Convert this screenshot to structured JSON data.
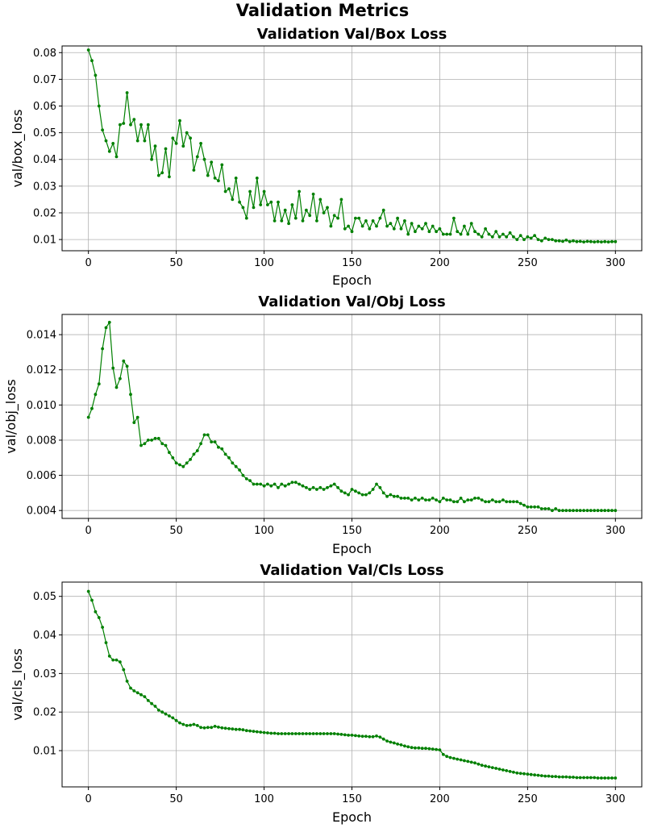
{
  "figure": {
    "suptitle": "Validation Metrics"
  },
  "chart_data": [
    {
      "type": "line",
      "title": "Validation Val/Box Loss",
      "xlabel": "Epoch",
      "ylabel": "val/box_loss",
      "xlim": [
        -15,
        315
      ],
      "ylim": [
        0.0058,
        0.0825
      ],
      "xticks": [
        0,
        50,
        100,
        150,
        200,
        250,
        300
      ],
      "xtick_labels": [
        "0",
        "50",
        "100",
        "150",
        "200",
        "250",
        "300"
      ],
      "yticks": [
        0.01,
        0.02,
        0.03,
        0.04,
        0.05,
        0.06,
        0.07,
        0.08
      ],
      "ytick_labels": [
        "0.01",
        "0.02",
        "0.03",
        "0.04",
        "0.05",
        "0.06",
        "0.07",
        "0.08"
      ],
      "grid": true,
      "marker": "o",
      "series": [
        {
          "color": "#008000",
          "x": [
            0,
            2,
            4,
            6,
            8,
            10,
            12,
            14,
            16,
            18,
            20,
            22,
            24,
            26,
            28,
            30,
            32,
            34,
            36,
            38,
            40,
            42,
            44,
            46,
            48,
            50,
            52,
            54,
            56,
            58,
            60,
            62,
            64,
            66,
            68,
            70,
            72,
            74,
            76,
            78,
            80,
            82,
            84,
            86,
            88,
            90,
            92,
            94,
            96,
            98,
            100,
            102,
            104,
            106,
            108,
            110,
            112,
            114,
            116,
            118,
            120,
            122,
            124,
            126,
            128,
            130,
            132,
            134,
            136,
            138,
            140,
            142,
            144,
            146,
            148,
            150,
            152,
            154,
            156,
            158,
            160,
            162,
            164,
            166,
            168,
            170,
            172,
            174,
            176,
            178,
            180,
            182,
            184,
            186,
            188,
            190,
            192,
            194,
            196,
            198,
            200,
            202,
            204,
            206,
            208,
            210,
            212,
            214,
            216,
            218,
            220,
            222,
            224,
            226,
            228,
            230,
            232,
            234,
            236,
            238,
            240,
            242,
            244,
            246,
            248,
            250,
            252,
            254,
            256,
            258,
            260,
            262,
            264,
            266,
            268,
            270,
            272,
            274,
            276,
            278,
            280,
            282,
            284,
            286,
            288,
            290,
            292,
            294,
            296,
            298,
            300
          ],
          "y": [
            0.081,
            0.077,
            0.0715,
            0.06,
            0.051,
            0.047,
            0.043,
            0.046,
            0.041,
            0.053,
            0.0535,
            0.065,
            0.053,
            0.055,
            0.047,
            0.053,
            0.047,
            0.053,
            0.04,
            0.045,
            0.034,
            0.035,
            0.044,
            0.0335,
            0.048,
            0.046,
            0.0545,
            0.045,
            0.05,
            0.048,
            0.036,
            0.041,
            0.046,
            0.04,
            0.034,
            0.039,
            0.033,
            0.032,
            0.038,
            0.028,
            0.029,
            0.025,
            0.033,
            0.024,
            0.022,
            0.018,
            0.028,
            0.022,
            0.033,
            0.023,
            0.028,
            0.023,
            0.024,
            0.017,
            0.024,
            0.017,
            0.021,
            0.016,
            0.023,
            0.018,
            0.028,
            0.017,
            0.021,
            0.019,
            0.027,
            0.017,
            0.025,
            0.02,
            0.022,
            0.015,
            0.019,
            0.018,
            0.025,
            0.014,
            0.015,
            0.013,
            0.018,
            0.018,
            0.015,
            0.017,
            0.014,
            0.017,
            0.015,
            0.018,
            0.021,
            0.015,
            0.016,
            0.014,
            0.018,
            0.014,
            0.017,
            0.012,
            0.016,
            0.013,
            0.015,
            0.014,
            0.016,
            0.013,
            0.015,
            0.013,
            0.014,
            0.012,
            0.012,
            0.012,
            0.018,
            0.013,
            0.012,
            0.015,
            0.012,
            0.016,
            0.013,
            0.012,
            0.011,
            0.014,
            0.012,
            0.011,
            0.013,
            0.011,
            0.012,
            0.011,
            0.0125,
            0.011,
            0.01,
            0.0115,
            0.01,
            0.011,
            0.0105,
            0.0115,
            0.01,
            0.0095,
            0.0105,
            0.01,
            0.01,
            0.0095,
            0.0095,
            0.0093,
            0.0098,
            0.0092,
            0.0095,
            0.0092,
            0.0093,
            0.0091,
            0.0093,
            0.0092,
            0.0091,
            0.0092,
            0.0091,
            0.0092,
            0.0091,
            0.0092,
            0.0092
          ]
        }
      ]
    },
    {
      "type": "line",
      "title": "Validation Val/Obj Loss",
      "xlabel": "Epoch",
      "ylabel": "val/obj_loss",
      "xlim": [
        -15,
        315
      ],
      "ylim": [
        0.00355,
        0.01515
      ],
      "xticks": [
        0,
        50,
        100,
        150,
        200,
        250,
        300
      ],
      "xtick_labels": [
        "0",
        "50",
        "100",
        "150",
        "200",
        "250",
        "300"
      ],
      "yticks": [
        0.004,
        0.006,
        0.008,
        0.01,
        0.012,
        0.014
      ],
      "ytick_labels": [
        "0.004",
        "0.006",
        "0.008",
        "0.010",
        "0.012",
        "0.014"
      ],
      "grid": true,
      "marker": "o",
      "series": [
        {
          "color": "#008000",
          "x": [
            0,
            2,
            4,
            6,
            8,
            10,
            12,
            14,
            16,
            18,
            20,
            22,
            24,
            26,
            28,
            30,
            32,
            34,
            36,
            38,
            40,
            42,
            44,
            46,
            48,
            50,
            52,
            54,
            56,
            58,
            60,
            62,
            64,
            66,
            68,
            70,
            72,
            74,
            76,
            78,
            80,
            82,
            84,
            86,
            88,
            90,
            92,
            94,
            96,
            98,
            100,
            102,
            104,
            106,
            108,
            110,
            112,
            114,
            116,
            118,
            120,
            122,
            124,
            126,
            128,
            130,
            132,
            134,
            136,
            138,
            140,
            142,
            144,
            146,
            148,
            150,
            152,
            154,
            156,
            158,
            160,
            162,
            164,
            166,
            168,
            170,
            172,
            174,
            176,
            178,
            180,
            182,
            184,
            186,
            188,
            190,
            192,
            194,
            196,
            198,
            200,
            202,
            204,
            206,
            208,
            210,
            212,
            214,
            216,
            218,
            220,
            222,
            224,
            226,
            228,
            230,
            232,
            234,
            236,
            238,
            240,
            242,
            244,
            246,
            248,
            250,
            252,
            254,
            256,
            258,
            260,
            262,
            264,
            266,
            268,
            270,
            272,
            274,
            276,
            278,
            280,
            282,
            284,
            286,
            288,
            290,
            292,
            294,
            296,
            298,
            300
          ],
          "y": [
            0.0093,
            0.0098,
            0.0106,
            0.0112,
            0.0132,
            0.0144,
            0.0147,
            0.0121,
            0.011,
            0.0115,
            0.0125,
            0.0122,
            0.0106,
            0.009,
            0.0093,
            0.0077,
            0.0078,
            0.008,
            0.008,
            0.0081,
            0.0081,
            0.0078,
            0.0077,
            0.0073,
            0.007,
            0.0067,
            0.0066,
            0.0065,
            0.0067,
            0.0069,
            0.0072,
            0.0074,
            0.0078,
            0.0083,
            0.0083,
            0.0079,
            0.0079,
            0.0076,
            0.0075,
            0.0072,
            0.007,
            0.0067,
            0.0065,
            0.0063,
            0.006,
            0.0058,
            0.0057,
            0.0055,
            0.0055,
            0.0055,
            0.0054,
            0.0055,
            0.0054,
            0.0055,
            0.0053,
            0.0055,
            0.0054,
            0.0055,
            0.0056,
            0.0056,
            0.0055,
            0.0054,
            0.0053,
            0.0052,
            0.0053,
            0.0052,
            0.0053,
            0.0052,
            0.0053,
            0.0054,
            0.0055,
            0.0053,
            0.0051,
            0.005,
            0.0049,
            0.0052,
            0.0051,
            0.005,
            0.0049,
            0.0049,
            0.005,
            0.0052,
            0.0055,
            0.0053,
            0.005,
            0.0048,
            0.0049,
            0.0048,
            0.0048,
            0.0047,
            0.0047,
            0.0047,
            0.0046,
            0.0047,
            0.0046,
            0.0047,
            0.0046,
            0.0046,
            0.0047,
            0.0046,
            0.0045,
            0.0047,
            0.0046,
            0.0046,
            0.0045,
            0.0045,
            0.0047,
            0.0045,
            0.0046,
            0.0046,
            0.0047,
            0.0047,
            0.0046,
            0.0045,
            0.0045,
            0.0046,
            0.0045,
            0.0045,
            0.0046,
            0.0045,
            0.0045,
            0.0045,
            0.0045,
            0.0044,
            0.0043,
            0.0042,
            0.0042,
            0.0042,
            0.0042,
            0.0041,
            0.0041,
            0.0041,
            0.004,
            0.0041,
            0.004,
            0.004,
            0.004,
            0.004,
            0.004,
            0.004,
            0.004,
            0.004,
            0.004,
            0.004,
            0.004,
            0.004,
            0.004,
            0.004,
            0.004,
            0.004,
            0.004
          ]
        }
      ]
    },
    {
      "type": "line",
      "title": "Validation Val/Cls Loss",
      "xlabel": "Epoch",
      "ylabel": "val/cls_loss",
      "xlim": [
        -15,
        315
      ],
      "ylim": [
        0.0006,
        0.0537
      ],
      "xticks": [
        0,
        50,
        100,
        150,
        200,
        250,
        300
      ],
      "xtick_labels": [
        "0",
        "50",
        "100",
        "150",
        "200",
        "250",
        "300"
      ],
      "yticks": [
        0.01,
        0.02,
        0.03,
        0.04,
        0.05
      ],
      "ytick_labels": [
        "0.01",
        "0.02",
        "0.03",
        "0.04",
        "0.05"
      ],
      "grid": true,
      "marker": "o",
      "series": [
        {
          "color": "#008000",
          "x": [
            0,
            2,
            4,
            6,
            8,
            10,
            12,
            14,
            16,
            18,
            20,
            22,
            24,
            26,
            28,
            30,
            32,
            34,
            36,
            38,
            40,
            42,
            44,
            46,
            48,
            50,
            52,
            54,
            56,
            58,
            60,
            62,
            64,
            66,
            68,
            70,
            72,
            74,
            76,
            78,
            80,
            82,
            84,
            86,
            88,
            90,
            92,
            94,
            96,
            98,
            100,
            102,
            104,
            106,
            108,
            110,
            112,
            114,
            116,
            118,
            120,
            122,
            124,
            126,
            128,
            130,
            132,
            134,
            136,
            138,
            140,
            142,
            144,
            146,
            148,
            150,
            152,
            154,
            156,
            158,
            160,
            162,
            164,
            166,
            168,
            170,
            172,
            174,
            176,
            178,
            180,
            182,
            184,
            186,
            188,
            190,
            192,
            194,
            196,
            198,
            200,
            202,
            204,
            206,
            208,
            210,
            212,
            214,
            216,
            218,
            220,
            222,
            224,
            226,
            228,
            230,
            232,
            234,
            236,
            238,
            240,
            242,
            244,
            246,
            248,
            250,
            252,
            254,
            256,
            258,
            260,
            262,
            264,
            266,
            268,
            270,
            272,
            274,
            276,
            278,
            280,
            282,
            284,
            286,
            288,
            290,
            292,
            294,
            296,
            298,
            300
          ],
          "y": [
            0.0513,
            0.049,
            0.046,
            0.0445,
            0.042,
            0.038,
            0.0345,
            0.0335,
            0.0335,
            0.033,
            0.031,
            0.028,
            0.0262,
            0.0255,
            0.025,
            0.0245,
            0.024,
            0.023,
            0.0222,
            0.0215,
            0.0205,
            0.02,
            0.0195,
            0.019,
            0.0185,
            0.0178,
            0.0172,
            0.0168,
            0.0165,
            0.0166,
            0.0168,
            0.0165,
            0.016,
            0.0159,
            0.016,
            0.016,
            0.0163,
            0.0161,
            0.0159,
            0.0158,
            0.0157,
            0.0156,
            0.0155,
            0.0155,
            0.0154,
            0.0152,
            0.0151,
            0.015,
            0.0149,
            0.0148,
            0.0147,
            0.0146,
            0.0145,
            0.0145,
            0.0144,
            0.0144,
            0.0144,
            0.0144,
            0.0144,
            0.0144,
            0.0144,
            0.0144,
            0.0144,
            0.0144,
            0.0144,
            0.0144,
            0.0144,
            0.0144,
            0.0144,
            0.0144,
            0.0144,
            0.0143,
            0.0142,
            0.0141,
            0.014,
            0.014,
            0.0139,
            0.0138,
            0.0137,
            0.0137,
            0.0136,
            0.0136,
            0.0138,
            0.0135,
            0.013,
            0.0125,
            0.0122,
            0.012,
            0.0117,
            0.0115,
            0.0112,
            0.011,
            0.0108,
            0.0107,
            0.0107,
            0.0106,
            0.0106,
            0.0105,
            0.0104,
            0.0103,
            0.0102,
            0.009,
            0.0085,
            0.0082,
            0.008,
            0.0078,
            0.0076,
            0.0074,
            0.0072,
            0.007,
            0.0068,
            0.0065,
            0.0062,
            0.006,
            0.0058,
            0.0056,
            0.0054,
            0.0052,
            0.005,
            0.0048,
            0.0046,
            0.0044,
            0.0042,
            0.0041,
            0.004,
            0.0039,
            0.0038,
            0.0037,
            0.0036,
            0.0035,
            0.0034,
            0.0034,
            0.0033,
            0.0033,
            0.0032,
            0.0032,
            0.0032,
            0.0031,
            0.0031,
            0.003,
            0.003,
            0.003,
            0.003,
            0.003,
            0.003,
            0.0029,
            0.0029,
            0.0029,
            0.0029,
            0.0029,
            0.0029
          ]
        }
      ]
    }
  ]
}
